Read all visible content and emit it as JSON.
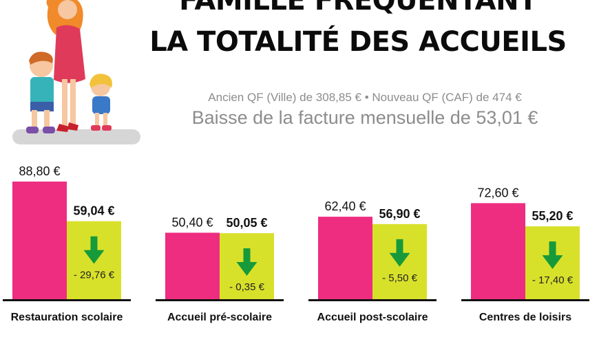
{
  "header": {
    "title_line1": "FAMILLE FRÉQUENTANT",
    "title_line2": "LA TOTALITÉ DES ACCUEILS",
    "subtitle_qf": "Ancien QF (Ville) de 308,85 € • Nouveau QF (CAF) de 474 €",
    "subtitle_baisse": "Baisse de la facture mensuelle de 53,01 €"
  },
  "illustration": {
    "icon": "family-illustration-icon"
  },
  "colors": {
    "old": "#ee2d80",
    "new": "#d8e12a",
    "arrow": "#169a3a",
    "text_gray": "#8c8c8c"
  },
  "chart_data": {
    "type": "bar",
    "categories": [
      "Restauration scolaire",
      "Accueil pré-scolaire",
      "Accueil post-scolaire",
      "Centres de loisirs"
    ],
    "series": [
      {
        "values": [
          88.8,
          50.4,
          62.4,
          72.6
        ]
      },
      {
        "values": [
          59.04,
          50.05,
          56.9,
          55.2
        ]
      }
    ],
    "value_labels_old": [
      "88,80 €",
      "50,40 €",
      "62,40 €",
      "72,60 €"
    ],
    "value_labels_new": [
      "59,04 €",
      "50,05 €",
      "56,90 €",
      "55,20 €"
    ],
    "diff_labels": [
      "- 29,76 €",
      "- 0,35 €",
      "- 5,50 €",
      "- 17,40 €"
    ],
    "ylim": [
      0,
      100
    ],
    "grid": false,
    "legend": "none"
  }
}
